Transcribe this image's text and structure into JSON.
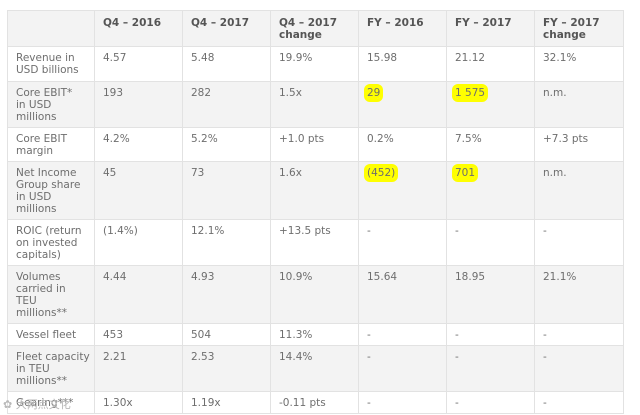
{
  "header": [
    "",
    "Q4 – 2016",
    "Q4 – 2017",
    "Q4 – 2017\nchange",
    "FY – 2016",
    "FY – 2017",
    "FY – 2017\nchange"
  ],
  "rows": [
    [
      "Revenue in\nUSD billions",
      "4.57",
      "5.48",
      "19.9%",
      "15.98",
      "21.12",
      "32.1%"
    ],
    [
      "Core EBIT*\nin USD\nmillions",
      "193",
      "282",
      "1.5x",
      "29",
      "1 575",
      "n.m."
    ],
    [
      "Core EBIT\nmargin",
      "4.2%",
      "5.2%",
      "+1.0 pts",
      "0.2%",
      "7.5%",
      "+7.3 pts"
    ],
    [
      "Net Income\nGroup share\nin USD\nmillions",
      "45",
      "73",
      "1.6x",
      "(452)",
      "701",
      "n.m."
    ],
    [
      "ROIC (return\non invested\ncapitals)",
      "(1.4%)",
      "12.1%",
      "+13.5 pts",
      "-",
      "-",
      "-"
    ],
    [
      "Volumes\ncarried in\nTEU\nmillions**",
      "4.44",
      "4.93",
      "10.9%",
      "15.64",
      "18.95",
      "21.1%"
    ],
    [
      "Vessel fleet",
      "453",
      "504",
      "11.3%",
      "-",
      "-",
      "-"
    ],
    [
      "Fleet capacity\nin TEU\nmillions**",
      "2.21",
      "2.53",
      "14.4%",
      "-",
      "-",
      "-"
    ],
    [
      "Gearing***",
      "1.30x",
      "1.19x",
      "-0.11 pts",
      "-",
      "-",
      "-"
    ]
  ],
  "highlight_color": "#ffff00",
  "watermark": "大两点文化"
}
